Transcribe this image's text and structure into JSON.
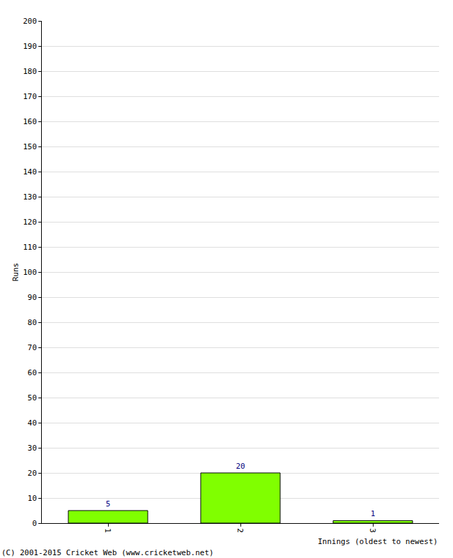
{
  "chart_data": {
    "type": "bar",
    "x_label": "Innings (oldest to newest)",
    "y_label": "Runs",
    "annotations": [
      "(C) 2001-2015 Cricket Web (www.cricketweb.net)"
    ],
    "categories": [
      "1",
      "2",
      "3"
    ],
    "values": [
      5,
      20,
      1
    ],
    "color": "#80ff00",
    "ylim": [
      0,
      200
    ],
    "yticks": [
      0,
      10,
      20,
      30,
      40,
      50,
      60,
      70,
      80,
      90,
      100,
      110,
      120,
      130,
      140,
      150,
      160,
      170,
      180,
      190,
      200
    ],
    "grid": true,
    "data_labels": true
  }
}
